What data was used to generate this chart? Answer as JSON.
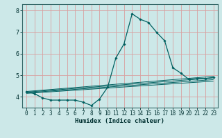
{
  "xlabel": "Humidex (Indice chaleur)",
  "background_color": "#cce8e8",
  "line_color": "#006060",
  "grid_color": "#d8a0a0",
  "xlim": [
    -0.5,
    23.5
  ],
  "ylim": [
    3.5,
    8.3
  ],
  "yticks": [
    4,
    5,
    6,
    7,
    8
  ],
  "xticks": [
    0,
    1,
    2,
    3,
    4,
    5,
    6,
    7,
    8,
    9,
    10,
    11,
    12,
    13,
    14,
    15,
    16,
    17,
    18,
    19,
    20,
    21,
    22,
    23
  ],
  "series": [
    [
      0,
      4.25
    ],
    [
      1,
      4.15
    ],
    [
      2,
      3.95
    ],
    [
      3,
      3.85
    ],
    [
      4,
      3.85
    ],
    [
      5,
      3.85
    ],
    [
      6,
      3.85
    ],
    [
      7,
      3.75
    ],
    [
      8,
      3.6
    ],
    [
      9,
      3.9
    ],
    [
      10,
      4.45
    ],
    [
      11,
      5.8
    ],
    [
      12,
      6.45
    ],
    [
      13,
      7.85
    ],
    [
      14,
      7.6
    ],
    [
      15,
      7.45
    ],
    [
      16,
      7.0
    ],
    [
      17,
      6.6
    ],
    [
      18,
      5.35
    ],
    [
      19,
      5.1
    ],
    [
      20,
      4.8
    ],
    [
      21,
      4.85
    ],
    [
      22,
      4.85
    ],
    [
      23,
      4.9
    ]
  ],
  "trend_lines": [
    {
      "x": [
        0,
        23
      ],
      "y": [
        4.25,
        4.95
      ]
    },
    {
      "x": [
        0,
        23
      ],
      "y": [
        4.22,
        4.88
      ]
    },
    {
      "x": [
        0,
        23
      ],
      "y": [
        4.19,
        4.8
      ]
    },
    {
      "x": [
        0,
        23
      ],
      "y": [
        4.16,
        4.73
      ]
    }
  ],
  "tick_fontsize": 5.5,
  "xlabel_fontsize": 6.5,
  "marker_size": 1.8,
  "linewidth": 0.9,
  "trend_linewidth": 0.7
}
